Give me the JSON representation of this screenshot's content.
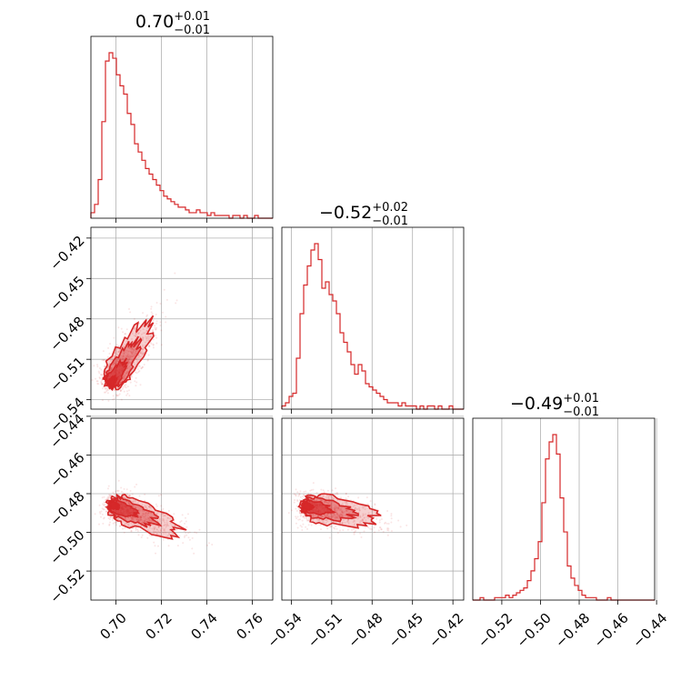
{
  "chart_data": {
    "type": "corner",
    "series_color": "#d62728",
    "grid": true,
    "parameters": [
      {
        "index": 0,
        "estimate": "0.70",
        "plus": "+0.01",
        "minus": "−0.01",
        "range": [
          0.689,
          0.769
        ]
      },
      {
        "index": 1,
        "estimate": "−0.52",
        "plus": "+0.02",
        "minus": "−0.01",
        "range": [
          -0.547,
          -0.412
        ]
      },
      {
        "index": 2,
        "estimate": "−0.49",
        "plus": "+0.01",
        "minus": "−0.01",
        "range": [
          -0.535,
          -0.441
        ]
      }
    ],
    "ticks": [
      {
        "values": [
          0.7,
          0.72,
          0.74,
          0.76
        ],
        "labels": [
          "0.70",
          "0.72",
          "0.74",
          "0.76"
        ]
      },
      {
        "values": [
          -0.54,
          -0.51,
          -0.48,
          -0.45,
          -0.42
        ],
        "labels": [
          "−0.54",
          "−0.51",
          "−0.48",
          "−0.45",
          "−0.42"
        ]
      },
      {
        "values": [
          -0.52,
          -0.5,
          -0.48,
          -0.46,
          -0.44
        ],
        "labels": [
          "−0.52",
          "−0.50",
          "−0.48",
          "−0.46",
          "−0.44"
        ]
      }
    ],
    "histograms": [
      {
        "param": 0,
        "counts": [
          2,
          5,
          14,
          35,
          57,
          60,
          58,
          52,
          48,
          45,
          38,
          34,
          27,
          24,
          21,
          18,
          16,
          14,
          12,
          10,
          8,
          7,
          6,
          5,
          4,
          4,
          3,
          2,
          2,
          3,
          2,
          2,
          1,
          2,
          1,
          1,
          1,
          1,
          0,
          1,
          1,
          0,
          1,
          0,
          0,
          1,
          0,
          0,
          0,
          0
        ]
      },
      {
        "param": 1,
        "counts": [
          1,
          2,
          4,
          5,
          16,
          30,
          39,
          45,
          50,
          52,
          47,
          38,
          40,
          36,
          34,
          30,
          24,
          21,
          18,
          14,
          11,
          14,
          12,
          8,
          7,
          6,
          5,
          4,
          3,
          2,
          2,
          2,
          1,
          2,
          1,
          1,
          1,
          0,
          1,
          0,
          1,
          1,
          0,
          1,
          0,
          0,
          1,
          0,
          0,
          0
        ]
      },
      {
        "param": 2,
        "counts": [
          0,
          0,
          1,
          0,
          0,
          0,
          1,
          1,
          1,
          2,
          1,
          2,
          3,
          4,
          5,
          8,
          12,
          17,
          24,
          40,
          58,
          65,
          68,
          60,
          42,
          28,
          14,
          9,
          6,
          4,
          2,
          1,
          1,
          1,
          0,
          0,
          0,
          1,
          0,
          0,
          0,
          0,
          0,
          0,
          0,
          0,
          0,
          0,
          0,
          0
        ]
      }
    ],
    "joint_panels": [
      {
        "x_param": 0,
        "y_param": 1,
        "mode_x": 0.697,
        "mode_y": -0.53,
        "ridge_slope": 1.6
      },
      {
        "x_param": 0,
        "y_param": 2,
        "mode_x": 0.697,
        "mode_y": -0.485,
        "ridge_slope": -0.4
      },
      {
        "x_param": 1,
        "y_param": 2,
        "mode_x": -0.532,
        "mode_y": -0.486,
        "ridge_slope": -0.18
      }
    ]
  }
}
